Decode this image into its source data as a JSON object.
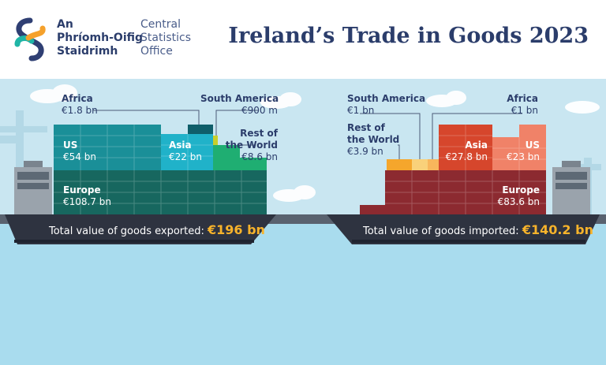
{
  "logo": {
    "irish_lines": [
      "An",
      "Phríomh-Oifig",
      "Staidrimh"
    ],
    "english_lines": [
      "Central",
      "Statistics",
      "Office"
    ]
  },
  "title": "Ireland’s Trade in Goods 2023",
  "exports": {
    "total_label": "Total value of goods exported:",
    "total_value": "€196 bn",
    "regions": {
      "africa": {
        "name": "Africa",
        "value": "€1.8 bn"
      },
      "south_america": {
        "name": "South America",
        "value": "€900 m"
      },
      "rest_of_world": {
        "name": "Rest of the World",
        "name_lines": [
          "Rest of",
          "the World"
        ],
        "value": "€8.6 bn"
      },
      "us": {
        "name": "US",
        "value": "€54 bn"
      },
      "asia": {
        "name": "Asia",
        "value": "€22 bn"
      },
      "europe": {
        "name": "Europe",
        "value": "€108.7 bn"
      }
    }
  },
  "imports": {
    "total_label": "Total value of goods imported:",
    "total_value": "€140.2 bn",
    "regions": {
      "south_america": {
        "name": "South America",
        "value": "€1 bn"
      },
      "africa": {
        "name": "Africa",
        "value": "€1 bn"
      },
      "rest_of_world": {
        "name": "Rest of the World",
        "name_lines": [
          "Rest of",
          "the World"
        ],
        "value": "€3.9 bn"
      },
      "asia": {
        "name": "Asia",
        "value": "€27.8 bn"
      },
      "us": {
        "name": "US",
        "value": "€23 bn"
      },
      "europe": {
        "name": "Europe",
        "value": "€83.6 bn"
      }
    }
  },
  "colors": {
    "title": "#2b3d6b",
    "export_europe": "#17675f",
    "export_us": "#1a8f98",
    "export_asia": "#20b2c9",
    "export_africa": "#0f5e6a",
    "export_south_america": "#c8cf2b",
    "export_rest_of_world": "#1fae72",
    "import_europe": "#8c2a30",
    "import_asia": "#d6462c",
    "import_us": "#f08268",
    "import_rest_of_world": "#f5a62c",
    "import_south_america": "#f9d17a",
    "hull": "#2e3340",
    "total_highlight": "#f7b32b",
    "sky": "#c9e6f1",
    "sea": "#a9dcee"
  }
}
